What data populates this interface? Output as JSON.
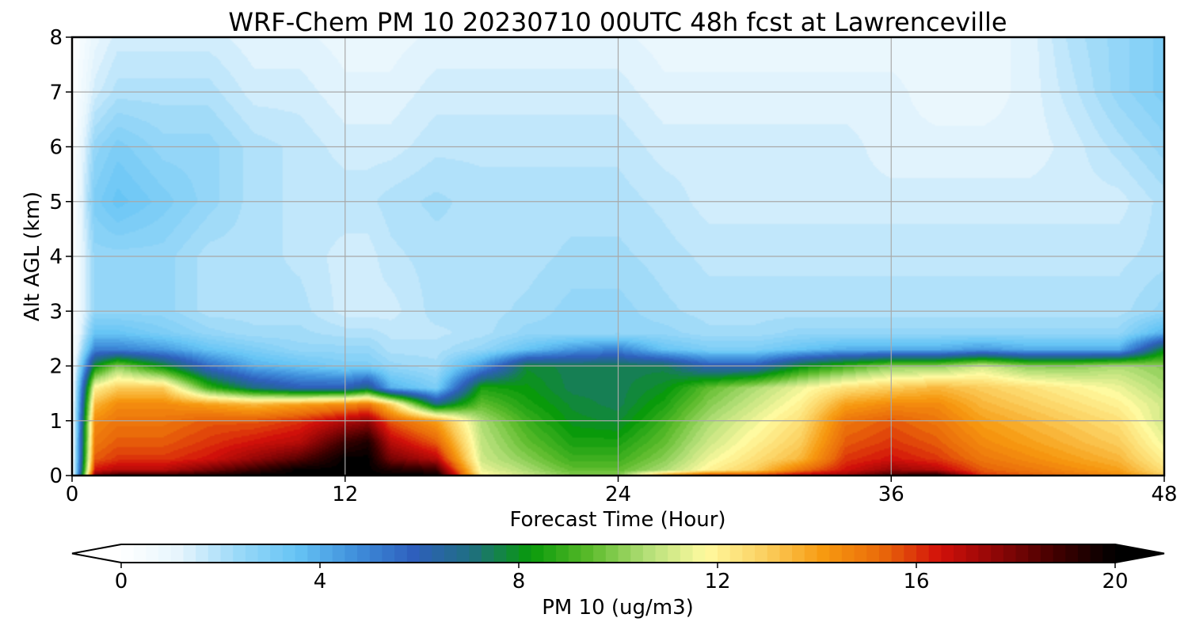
{
  "chart_data": {
    "type": "heatmap",
    "title": "WRF-Chem PM 10  20230710 00UTC 48h fcst at Lawrenceville",
    "xlabel": "Forecast Time (Hour)",
    "ylabel": "Alt AGL (km)",
    "xlim": [
      0,
      48
    ],
    "ylim": [
      0,
      8
    ],
    "x_ticks": [
      "0",
      "12",
      "24",
      "36",
      "48"
    ],
    "y_ticks": [
      "0",
      "1",
      "2",
      "3",
      "4",
      "5",
      "6",
      "7",
      "8"
    ],
    "grid": true,
    "colorbar": {
      "label": "PM 10  (ug/m3)",
      "range": [
        0,
        20
      ],
      "ticks": [
        "0",
        "4",
        "8",
        "12",
        "16",
        "20"
      ],
      "extend": "both",
      "colors": [
        "#ffffff",
        "#e6f5fd",
        "#9ad9f8",
        "#66c4f5",
        "#3f8fdb",
        "#2e5fbd",
        "#1f6f80",
        "#089a0a",
        "#5aba2a",
        "#b4df78",
        "#fffaa0",
        "#fbd060",
        "#f79a10",
        "#ea6a0a",
        "#d2100a",
        "#8c0606",
        "#400000",
        "#000000"
      ]
    },
    "x": [
      0,
      1,
      2,
      4,
      6,
      8,
      10,
      12,
      13,
      14,
      16,
      18,
      20,
      22,
      24,
      26,
      28,
      30,
      32,
      34,
      36,
      38,
      40,
      42,
      44,
      46,
      48
    ],
    "y": [
      0,
      0.1,
      0.3,
      0.6,
      1.0,
      1.3,
      1.6,
      2.0,
      2.3,
      2.6,
      3.0,
      4.0,
      5.0,
      6.0,
      7.0,
      8.0
    ],
    "boundary_layer_top_km": [
      0,
      2.3,
      2.4,
      2.2,
      2.1,
      1.8,
      1.7,
      1.6,
      1.7,
      1.55,
      1.45,
      2.1,
      2.45,
      2.3,
      2.3,
      1.8,
      1.8,
      1.85,
      2.0,
      2.1,
      2.15,
      2.1,
      2.2,
      2.3,
      2.3,
      2.25,
      2.6
    ],
    "pm10_profiles": [
      [
        0,
        0,
        0,
        0,
        0,
        0,
        0,
        0,
        0,
        0,
        0,
        0,
        0,
        0,
        0,
        0
      ],
      [
        18,
        16.5,
        15.5,
        15,
        14.5,
        13.5,
        12,
        8,
        5,
        3.5,
        2.5,
        2.5,
        3,
        2.5,
        1.5,
        1
      ],
      [
        19,
        17,
        16,
        15.5,
        15,
        14.5,
        13,
        10,
        5,
        3.5,
        2.5,
        2.5,
        3.5,
        3,
        2,
        1.5
      ],
      [
        19,
        17,
        16,
        15.5,
        15,
        14.5,
        13,
        8,
        4.5,
        3,
        2.5,
        2.5,
        3,
        2.5,
        2,
        1.5
      ],
      [
        19.5,
        18,
        16.5,
        16,
        15.5,
        14,
        9,
        5.5,
        3.5,
        2.5,
        2,
        2,
        2.5,
        2.5,
        2,
        1.5
      ],
      [
        20,
        19,
        17.5,
        16.5,
        15.5,
        13.5,
        7,
        4,
        3,
        2.2,
        2,
        2,
        2,
        2,
        1.5,
        1.2
      ],
      [
        20,
        20,
        18.5,
        17,
        16,
        14,
        6,
        3.5,
        2.5,
        2.2,
        2,
        1.8,
        1.8,
        1.8,
        1.5,
        1.2
      ],
      [
        20,
        20,
        20,
        19,
        17,
        14.5,
        6,
        3,
        2.5,
        2,
        1.5,
        1.5,
        1.8,
        1.5,
        1.2,
        1
      ],
      [
        20,
        20,
        20,
        19.5,
        17.5,
        15,
        7,
        3,
        2.5,
        2,
        1.5,
        1.5,
        1.8,
        1.5,
        1.2,
        1
      ],
      [
        20,
        19.5,
        18,
        17,
        15.5,
        13,
        4,
        2.5,
        2,
        1.8,
        1.5,
        1.8,
        2,
        1.5,
        1.2,
        1
      ],
      [
        20,
        19,
        17,
        15.5,
        14,
        7,
        3,
        2.2,
        2,
        1.8,
        2,
        2,
        2.2,
        1.8,
        1.5,
        1.2
      ],
      [
        12,
        11.5,
        11,
        10.8,
        10.5,
        9.5,
        8.5,
        4.5,
        2.5,
        2,
        2,
        2,
        2,
        1.8,
        1.5,
        1.2
      ],
      [
        11,
        10.5,
        10,
        9.5,
        9,
        8.5,
        8.2,
        7.8,
        3.5,
        2.5,
        2.2,
        2,
        2,
        1.8,
        1.5,
        1.2
      ],
      [
        10,
        9.5,
        9,
        8.5,
        8,
        7.8,
        7.5,
        7.5,
        4.5,
        2.5,
        2.5,
        2.2,
        2,
        1.8,
        1.5,
        1.2
      ],
      [
        10,
        9.5,
        9,
        8.5,
        7.8,
        7.5,
        7.5,
        7.5,
        5,
        2.5,
        2.5,
        2.2,
        2,
        1.8,
        1.5,
        1.2
      ],
      [
        14,
        10.5,
        10,
        9.5,
        9,
        8.5,
        8,
        7.5,
        3.5,
        2.5,
        2.2,
        2,
        1.8,
        1.5,
        1.2,
        1
      ],
      [
        16,
        12,
        11.5,
        11,
        10.5,
        10,
        9.5,
        6,
        3,
        2.2,
        2,
        1.8,
        1.5,
        1.5,
        1.2,
        1
      ],
      [
        16,
        13,
        12.5,
        12,
        11.5,
        11,
        10.5,
        6,
        3,
        2.2,
        2,
        1.8,
        1.5,
        1.5,
        1.2,
        1
      ],
      [
        17,
        15,
        13.5,
        13,
        12.5,
        12,
        11.5,
        8,
        3.5,
        2.5,
        2,
        1.8,
        1.5,
        1.5,
        1.2,
        1
      ],
      [
        17.5,
        16.5,
        16,
        15.5,
        15,
        14,
        12.5,
        9,
        4,
        2.5,
        2,
        1.8,
        1.5,
        1.5,
        1.2,
        1
      ],
      [
        19,
        17.5,
        16.5,
        16,
        15.5,
        14.5,
        13,
        10,
        4,
        2.5,
        2,
        1.8,
        1.5,
        1.2,
        1.2,
        1
      ],
      [
        19.5,
        17,
        16,
        15.5,
        15,
        14.5,
        13.5,
        10,
        4,
        2.5,
        2,
        1.8,
        1.5,
        1.2,
        1,
        1
      ],
      [
        16,
        15.5,
        15,
        14.5,
        14,
        13.5,
        13,
        11,
        4.5,
        2.5,
        2,
        1.8,
        1.5,
        1.2,
        1,
        1
      ],
      [
        15.5,
        15,
        14.5,
        14,
        13.5,
        13,
        12.5,
        10,
        4,
        2.5,
        2,
        1.8,
        1.5,
        1.2,
        1.2,
        1.2
      ],
      [
        15,
        14.5,
        14,
        13.5,
        13,
        12.5,
        12,
        10,
        4,
        2.5,
        2,
        1.8,
        1.5,
        1.5,
        1.8,
        2
      ],
      [
        14.5,
        14,
        13.5,
        13,
        12.5,
        12,
        11.5,
        10.5,
        4,
        2.5,
        2,
        1.8,
        1.5,
        2,
        2.5,
        2.5
      ],
      [
        13,
        12.5,
        12,
        11.5,
        11,
        11,
        10.5,
        10,
        8,
        4,
        2.5,
        2,
        2,
        2.5,
        3,
        3
      ]
    ]
  }
}
